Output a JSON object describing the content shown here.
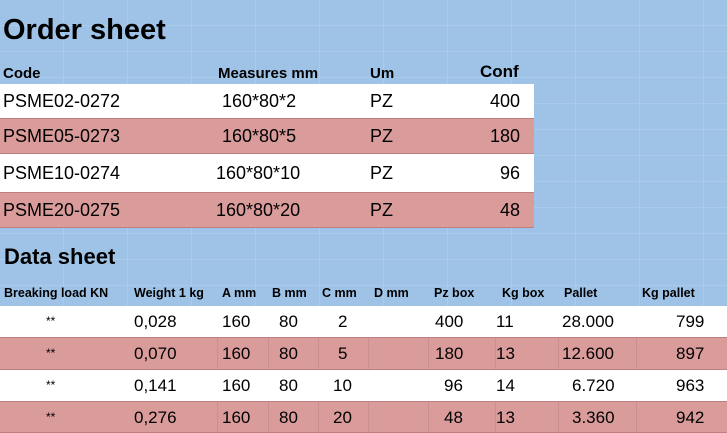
{
  "order_sheet": {
    "title": "Order sheet",
    "headers": {
      "code": "Code",
      "measures": "Measures mm",
      "um": "Um",
      "conf": "Conf"
    },
    "rows": [
      {
        "code": "PSME02-0272",
        "measures": "160*80*2",
        "um": "PZ",
        "conf": "400"
      },
      {
        "code": "PSME05-0273",
        "measures": "160*80*5",
        "um": "PZ",
        "conf": "180"
      },
      {
        "code": "PSME10-0274",
        "measures": "160*80*10",
        "um": "PZ",
        "conf": "96"
      },
      {
        "code": "PSME20-0275",
        "measures": "160*80*20",
        "um": "PZ",
        "conf": "48"
      }
    ]
  },
  "data_sheet": {
    "title": "Data sheet",
    "headers": {
      "breaking": "Breaking load KN",
      "weight": "Weight 1 kg",
      "a": "A mm",
      "b": "B mm",
      "c": "C mm",
      "d": "D mm",
      "pzbox": "Pz box",
      "kgbox": "Kg box",
      "pallet": "Pallet",
      "kgpallet": "Kg pallet"
    },
    "rows": [
      {
        "breaking": "**",
        "weight": "0,028",
        "a": "160",
        "b": "80",
        "c": "2",
        "d": "",
        "pzbox": "400",
        "kgbox": "11",
        "pallet": "28.000",
        "kgpallet": "799"
      },
      {
        "breaking": "**",
        "weight": "0,070",
        "a": "160",
        "b": "80",
        "c": "5",
        "d": "",
        "pzbox": "180",
        "kgbox": "13",
        "pallet": "12.600",
        "kgpallet": "897"
      },
      {
        "breaking": "**",
        "weight": "0,141",
        "a": "160",
        "b": "80",
        "c": "10",
        "d": "",
        "pzbox": "96",
        "kgbox": "14",
        "pallet": "6.720",
        "kgpallet": "963"
      },
      {
        "breaking": "**",
        "weight": "0,276",
        "a": "160",
        "b": "80",
        "c": "20",
        "d": "",
        "pzbox": "48",
        "kgbox": "13",
        "pallet": "3.360",
        "kgpallet": "942"
      }
    ]
  },
  "colors": {
    "background": "#9fc3e7",
    "row_alt": "#da9b9b",
    "row": "#ffffff"
  }
}
